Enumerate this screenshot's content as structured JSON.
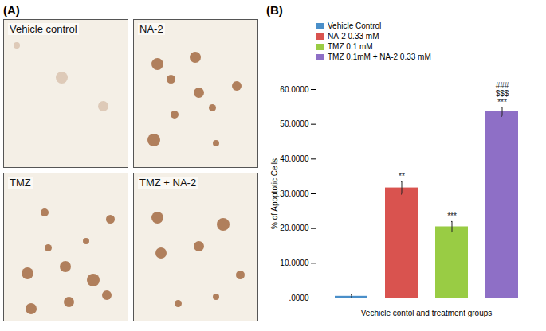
{
  "panel_a": {
    "label": "(A)",
    "images": [
      "Vehicle control",
      "NA-2",
      "TMZ",
      "TMZ + NA-2"
    ]
  },
  "chart_data": {
    "type": "bar",
    "panel_label": "(B)",
    "categories": [
      "Vehicle Control",
      "NA-2 0.33 mM",
      "TMZ 0.1 mM",
      "TMZ 0.1mM + NA-2 0.33 mM"
    ],
    "values": [
      0.5,
      31.7,
      20.5,
      53.6
    ],
    "errors": [
      0.5,
      1.8,
      1.5,
      1.3
    ],
    "colors": [
      "#4a8fc9",
      "#d9534f",
      "#99cc44",
      "#8e6fc6"
    ],
    "annotations": [
      [],
      [
        "**"
      ],
      [
        "***"
      ],
      [
        "###",
        "$$$",
        "***"
      ]
    ],
    "y_label": "% of Apoptotic Cells",
    "x_label": "Vechicle contol and treatment groups",
    "ylim": [
      0,
      60
    ],
    "yticks": [
      {
        "value": 0,
        "label": ".0000"
      },
      {
        "value": 10,
        "label": "10.0000"
      },
      {
        "value": 20,
        "label": "20.0000"
      },
      {
        "value": 30,
        "label": "30.0000"
      },
      {
        "value": 40,
        "label": "40.0000"
      },
      {
        "value": 50,
        "label": "50.0000"
      },
      {
        "value": 60,
        "label": "60.0000"
      }
    ],
    "legend": "top-left",
    "grid": false,
    "tick_labels": "y"
  }
}
